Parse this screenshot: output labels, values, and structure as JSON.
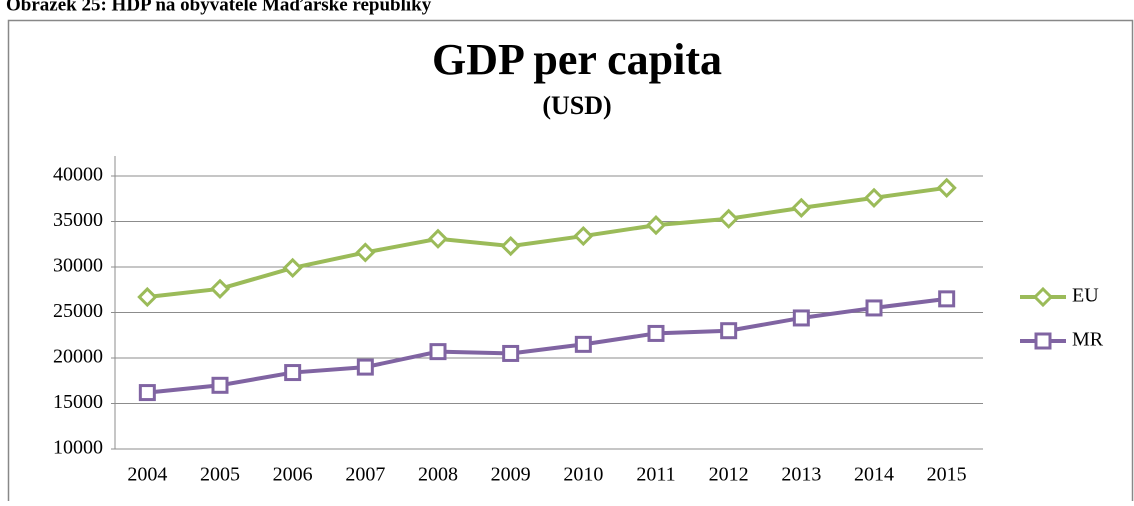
{
  "caption": "Obrázek 25: HDP na obyvatele Maďarské republiky",
  "chart_data": {
    "type": "line",
    "title": "GDP per capita",
    "subtitle": "(USD)",
    "categories": [
      "2004",
      "2005",
      "2006",
      "2007",
      "2008",
      "2009",
      "2010",
      "2011",
      "2012",
      "2013",
      "2014",
      "2015"
    ],
    "series": [
      {
        "name": "EU",
        "color": "#9bbb59",
        "marker": "diamond",
        "values": [
          26700,
          27600,
          29900,
          31600,
          33100,
          32300,
          33400,
          34600,
          35300,
          36500,
          37600,
          38700
        ]
      },
      {
        "name": "MR",
        "color": "#8064a2",
        "marker": "square",
        "values": [
          16200,
          17000,
          18400,
          19000,
          20700,
          20500,
          21500,
          22700,
          23000,
          24400,
          25500,
          26500
        ]
      }
    ],
    "ylim": [
      10000,
      40000
    ],
    "yticks": [
      10000,
      15000,
      20000,
      25000,
      30000,
      35000,
      40000
    ],
    "grid": true,
    "legend": "right"
  }
}
